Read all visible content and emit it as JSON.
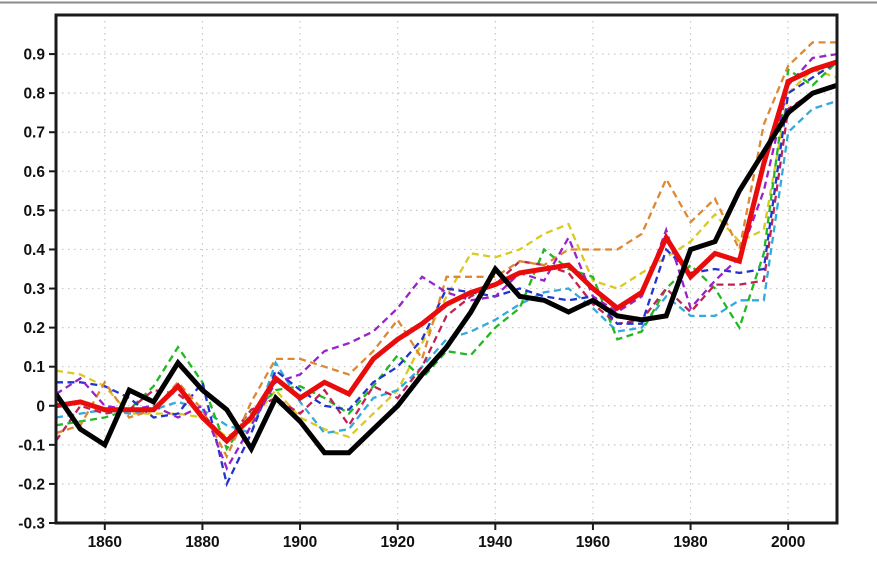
{
  "page": {
    "background": "#ffffff",
    "top_rule_color": "#8c8c8c"
  },
  "chart_data": {
    "type": "line",
    "title": "",
    "xlabel": "",
    "ylabel": "",
    "xlim": [
      1850,
      2010
    ],
    "ylim": [
      -0.3,
      1.0
    ],
    "grid": {
      "on": true,
      "style": "dotted",
      "color": "#c6c6c6",
      "x_values": [
        1860,
        1880,
        1900,
        1920,
        1940,
        1960,
        1980,
        2000
      ],
      "y_values": [
        0.9,
        0.8,
        0.7,
        0.6,
        0.5,
        0.4,
        0.3,
        0.2,
        0.1,
        0.0,
        -0.1,
        -0.2
      ]
    },
    "xticks": {
      "values": [
        1860,
        1880,
        1900,
        1920,
        1940,
        1960,
        1980,
        2000
      ],
      "labels": [
        "1860",
        "1880",
        "1900",
        "1920",
        "1940",
        "1960",
        "1980",
        "2000"
      ]
    },
    "yticks": {
      "values": [
        0.9,
        0.8,
        0.7,
        0.6,
        0.5,
        0.4,
        0.3,
        0.2,
        0.1,
        0.0,
        -0.1,
        -0.2,
        -0.3
      ],
      "labels": [
        "0.9",
        "0.8",
        "0.7",
        "0.6",
        "0.5",
        "0.4",
        "0.3",
        "0.2",
        "0.1",
        "0",
        "-0.1",
        "-0.2",
        "-0.3"
      ]
    },
    "axis_color": "#1a1a1a",
    "legend": "none",
    "x": [
      1850,
      1855,
      1860,
      1865,
      1870,
      1875,
      1880,
      1885,
      1890,
      1895,
      1900,
      1905,
      1910,
      1915,
      1920,
      1925,
      1930,
      1935,
      1940,
      1945,
      1950,
      1955,
      1960,
      1965,
      1970,
      1975,
      1980,
      1985,
      1990,
      1995,
      2000,
      2005,
      2010
    ],
    "series": [
      {
        "name": "member-yellow",
        "color": "#D9C922",
        "dash": true,
        "width": 2.3,
        "values": [
          0.09,
          0.08,
          0.05,
          -0.02,
          -0.02,
          -0.02,
          -0.03,
          -0.08,
          -0.04,
          0.04,
          -0.03,
          -0.06,
          -0.08,
          -0.02,
          0.04,
          0.16,
          0.28,
          0.39,
          0.38,
          0.4,
          0.44,
          0.465,
          0.32,
          0.3,
          0.34,
          0.38,
          0.42,
          0.49,
          0.42,
          0.45,
          0.8,
          0.86,
          0.84
        ]
      },
      {
        "name": "member-cyan",
        "color": "#33AADD",
        "dash": true,
        "width": 2.3,
        "values": [
          -0.03,
          -0.02,
          -0.01,
          -0.02,
          -0.01,
          0.01,
          -0.01,
          -0.05,
          -0.07,
          0.11,
          0.01,
          -0.07,
          -0.06,
          0.02,
          0.04,
          0.1,
          0.17,
          0.19,
          0.22,
          0.26,
          0.29,
          0.3,
          0.25,
          0.19,
          0.2,
          0.28,
          0.23,
          0.23,
          0.27,
          0.27,
          0.7,
          0.76,
          0.78
        ]
      },
      {
        "name": "member-green",
        "color": "#22B822",
        "dash": true,
        "width": 2.3,
        "values": [
          -0.05,
          -0.04,
          -0.03,
          -0.01,
          0.05,
          0.15,
          0.06,
          -0.11,
          -0.02,
          0.04,
          0.05,
          0.02,
          -0.02,
          0.05,
          0.13,
          0.07,
          0.14,
          0.13,
          0.2,
          0.25,
          0.4,
          0.35,
          0.33,
          0.17,
          0.19,
          0.3,
          0.36,
          0.3,
          0.2,
          0.39,
          0.86,
          0.82,
          0.88
        ]
      },
      {
        "name": "member-crimson",
        "color": "#C02255",
        "dash": true,
        "width": 2.3,
        "values": [
          -0.09,
          0.0,
          -0.02,
          -0.01,
          0.04,
          0.03,
          -0.02,
          -0.09,
          -0.01,
          0.02,
          -0.02,
          0.04,
          -0.05,
          0.05,
          0.02,
          0.1,
          0.23,
          0.28,
          0.31,
          0.37,
          0.36,
          0.34,
          0.26,
          0.21,
          0.22,
          0.3,
          0.24,
          0.31,
          0.31,
          0.32,
          0.76,
          0.8,
          0.82
        ]
      },
      {
        "name": "member-blue",
        "color": "#2333CC",
        "dash": true,
        "width": 2.3,
        "values": [
          0.06,
          0.06,
          0.05,
          0.02,
          -0.03,
          -0.02,
          0.06,
          -0.2,
          -0.07,
          0.09,
          0.04,
          0.0,
          -0.01,
          0.06,
          0.1,
          0.17,
          0.3,
          0.29,
          0.28,
          0.3,
          0.28,
          0.27,
          0.28,
          0.21,
          0.21,
          0.4,
          0.34,
          0.35,
          0.34,
          0.35,
          0.8,
          0.84,
          0.88
        ]
      },
      {
        "name": "member-orange",
        "color": "#DD8832",
        "dash": true,
        "width": 2.3,
        "values": [
          -0.07,
          -0.05,
          0.06,
          -0.03,
          -0.01,
          0.06,
          -0.01,
          -0.13,
          0.01,
          0.12,
          0.12,
          0.1,
          0.08,
          0.14,
          0.22,
          0.12,
          0.33,
          0.33,
          0.33,
          0.37,
          0.36,
          0.4,
          0.4,
          0.4,
          0.44,
          0.58,
          0.47,
          0.53,
          0.4,
          0.72,
          0.87,
          0.93,
          0.93
        ]
      },
      {
        "name": "member-purple",
        "color": "#9922CC",
        "dash": true,
        "width": 2.3,
        "values": [
          0.03,
          0.07,
          0.0,
          -0.01,
          0.0,
          -0.03,
          0.0,
          -0.16,
          -0.05,
          0.06,
          0.08,
          0.14,
          0.16,
          0.19,
          0.25,
          0.33,
          0.29,
          0.27,
          0.28,
          0.34,
          0.32,
          0.43,
          0.28,
          0.24,
          0.28,
          0.45,
          0.25,
          0.32,
          0.38,
          0.55,
          0.82,
          0.89,
          0.9
        ]
      },
      {
        "name": "ensemble-mean",
        "color": "#E80C0C",
        "dash": false,
        "width": 5,
        "values": [
          0.0,
          0.01,
          -0.01,
          -0.01,
          -0.01,
          0.05,
          -0.03,
          -0.09,
          -0.03,
          0.07,
          0.02,
          0.06,
          0.03,
          0.12,
          0.17,
          0.21,
          0.26,
          0.29,
          0.31,
          0.34,
          0.35,
          0.36,
          0.3,
          0.25,
          0.29,
          0.43,
          0.33,
          0.39,
          0.37,
          0.62,
          0.83,
          0.86,
          0.88
        ]
      },
      {
        "name": "observations",
        "color": "#000000",
        "dash": false,
        "width": 5,
        "values": [
          0.03,
          -0.06,
          -0.1,
          0.04,
          0.01,
          0.11,
          0.04,
          -0.01,
          -0.11,
          0.02,
          -0.04,
          -0.12,
          -0.12,
          -0.06,
          0.0,
          0.08,
          0.15,
          0.24,
          0.35,
          0.28,
          0.27,
          0.24,
          0.27,
          0.23,
          0.22,
          0.23,
          0.4,
          0.42,
          0.55,
          0.65,
          0.75,
          0.8,
          0.82
        ]
      }
    ]
  }
}
